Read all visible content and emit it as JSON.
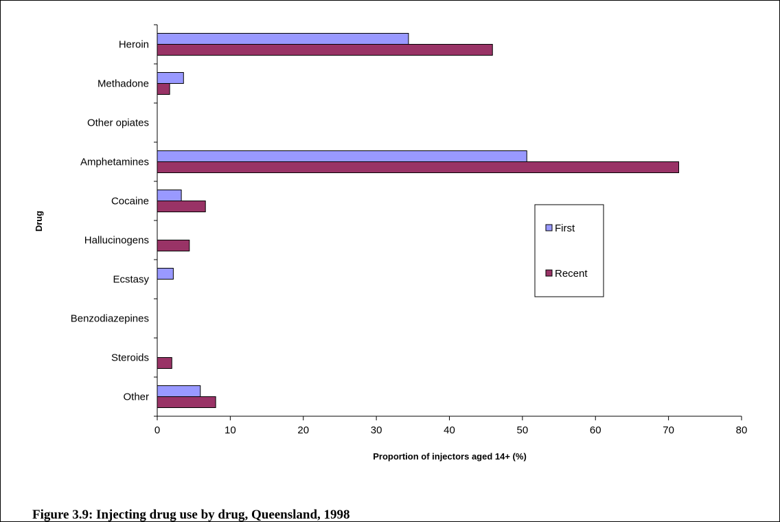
{
  "caption": "Figure 3.9: Injecting drug use by drug, Queensland, 1998",
  "chart_data": {
    "type": "bar",
    "orientation": "horizontal",
    "title": "",
    "xlabel": "Proportion of injectors aged 14+ (%)",
    "ylabel": "Drug",
    "categories": [
      "Heroin",
      "Methadone",
      "Other opiates",
      "Amphetamines",
      "Cocaine",
      "Hallucinogens",
      "Ecstasy",
      "Benzodiazepines",
      "Steroids",
      "Other"
    ],
    "series": [
      {
        "name": "First",
        "color": "#9999ff",
        "values": [
          34.4,
          3.6,
          0,
          50.6,
          3.3,
          0,
          2.2,
          0,
          0,
          5.9
        ]
      },
      {
        "name": "Recent",
        "color": "#993366",
        "values": [
          45.9,
          1.7,
          0,
          71.4,
          6.6,
          4.4,
          0,
          0,
          2.0,
          8.0
        ]
      }
    ],
    "xlim": [
      0,
      80
    ],
    "xticks": [
      "0",
      "10",
      "20",
      "30",
      "40",
      "50",
      "60",
      "70",
      "80"
    ],
    "grid": false,
    "legend_position": "right"
  }
}
